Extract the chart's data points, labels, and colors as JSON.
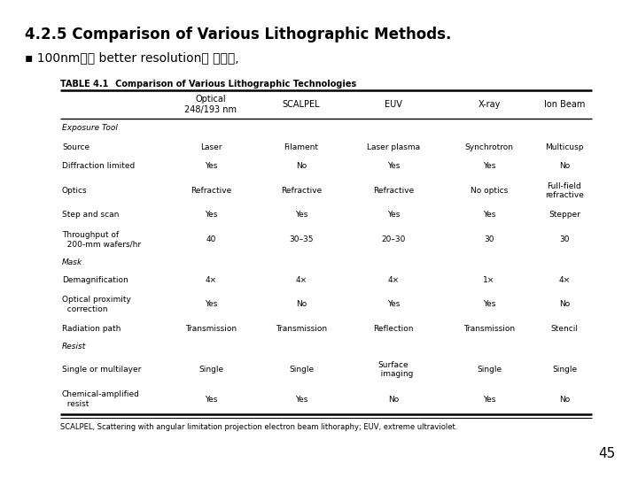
{
  "title": "4.2.5 Comparison of Various Lithographic Methods.",
  "subtitle": "▪ 100nm혹은 better resolution에 대하여,",
  "table_title_bold": "TABLE 4.1",
  "table_title_rest": "   Comparison of Various Lithographic Technologies",
  "columns": [
    "",
    "Optical\n248/193 nm",
    "SCALPEL",
    "EUV",
    "X-ray",
    "Ion Beam"
  ],
  "rows": [
    [
      "Exposure Tool",
      "",
      "",
      "",
      "",
      ""
    ],
    [
      "Source",
      "Laser",
      "Filament",
      "Laser plasma",
      "Synchrotron",
      "Multicusp"
    ],
    [
      "Diffraction limited",
      "Yes",
      "No",
      "Yes",
      "Yes",
      "No"
    ],
    [
      "Optics",
      "Refractive",
      "Refractive",
      "Refractive",
      "No optics",
      "Full-field\nrefractive"
    ],
    [
      "Step and scan",
      "Yes",
      "Yes",
      "Yes",
      "Yes",
      "Stepper"
    ],
    [
      "Throughput of\n  200-mm wafers/hr",
      "40",
      "30–35",
      "20–30",
      "30",
      "30"
    ],
    [
      "Mask",
      "",
      "",
      "",
      "",
      ""
    ],
    [
      "Demagnification",
      "4×",
      "4×",
      "4×",
      "1×",
      "4×"
    ],
    [
      "Optical proximity\n  correction",
      "Yes",
      "No",
      "Yes",
      "Yes",
      "No"
    ],
    [
      "Radiation path",
      "Transmission",
      "Transmission",
      "Reflection",
      "Transmission",
      "Stencil"
    ],
    [
      "Resist",
      "",
      "",
      "",
      "",
      ""
    ],
    [
      "Single or multilayer",
      "Single",
      "Single",
      "Surface\n   imaging",
      "Single",
      "Single"
    ],
    [
      "Chemical-amplified\n  resist",
      "Yes",
      "Yes",
      "No",
      "Yes",
      "No"
    ]
  ],
  "footnote": "SCALPEL, Scattering with angular limitation projection electron beam lithoraphy; EUV, extreme ultraviolet.",
  "page_number": "45",
  "italic_rows": [
    0,
    6,
    10
  ],
  "bg_color": "#ffffff",
  "text_color": "#000000"
}
